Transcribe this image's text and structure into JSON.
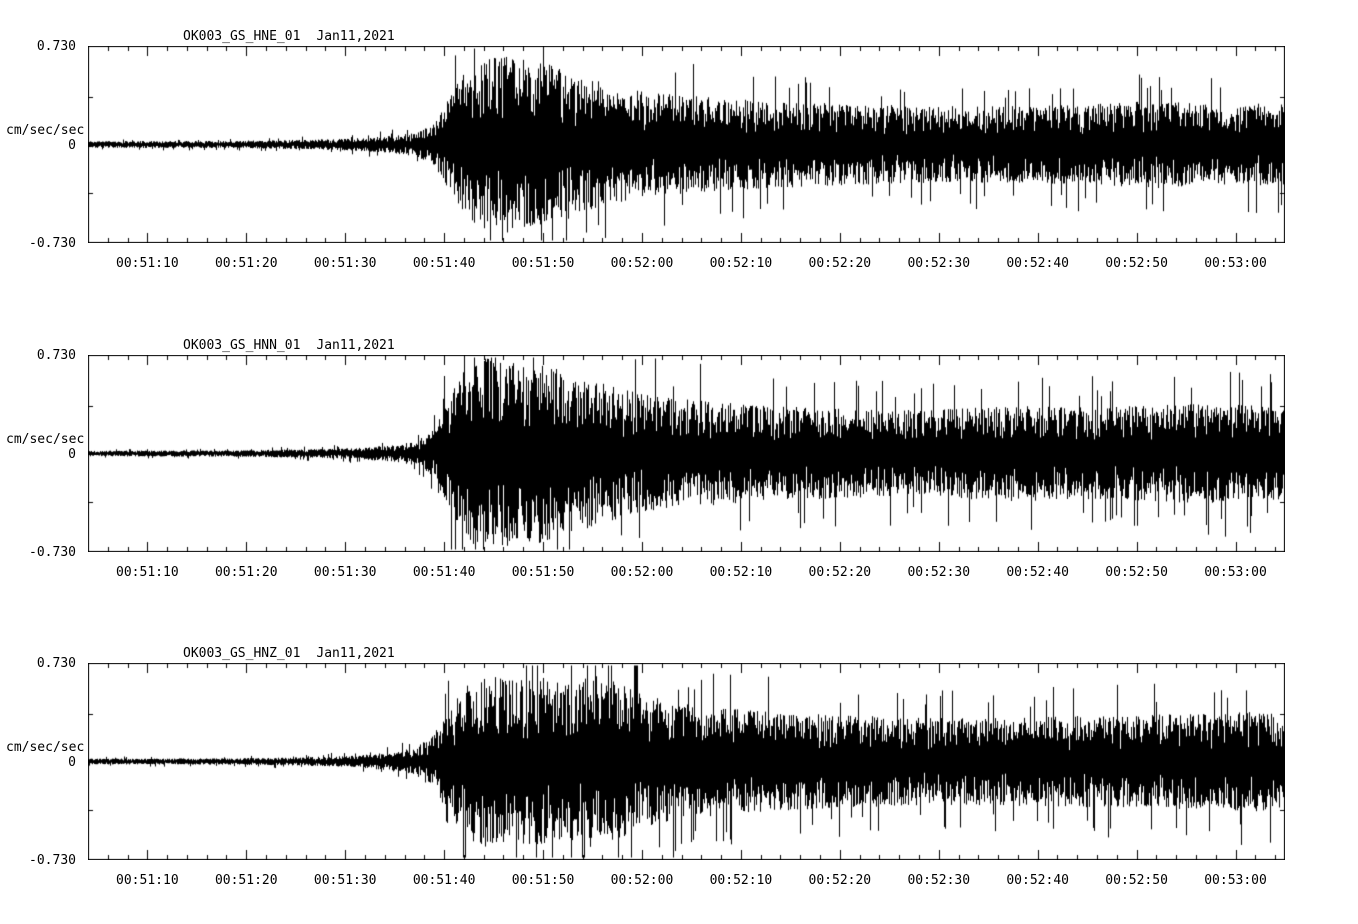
{
  "page": {
    "background": "#ffffff",
    "trace_color": "#000000",
    "frame_color": "#000000"
  },
  "chart_data": [
    {
      "type": "line",
      "title": "OK003_GS_HNE_01",
      "date_label": "Jan11,2021",
      "ylabel": "cm/sec/sec",
      "ylim": [
        -0.73,
        0.73
      ],
      "ytick_labels": [
        "0.730",
        "0",
        "-0.730"
      ],
      "xtick_labels": [
        "00:51:10",
        "00:51:20",
        "00:51:30",
        "00:51:40",
        "00:51:50",
        "00:52:00",
        "00:52:10",
        "00:52:20",
        "00:52:30",
        "00:52:40",
        "00:52:50",
        "00:53:00"
      ],
      "xtick_seconds": [
        6,
        16,
        26,
        36,
        46,
        56,
        66,
        76,
        86,
        96,
        106,
        116
      ],
      "x_range_seconds": [
        0,
        121
      ],
      "x_start_time": "00:51:04",
      "x_end_time": "00:53:05",
      "minor_tick_step_seconds": 2,
      "grid": false,
      "seed": 11,
      "envelope": [
        [
          0,
          0.035
        ],
        [
          14,
          0.038
        ],
        [
          22,
          0.05
        ],
        [
          27,
          0.065
        ],
        [
          30,
          0.085
        ],
        [
          33,
          0.12
        ],
        [
          35,
          0.22
        ],
        [
          36.5,
          0.5
        ],
        [
          38,
          0.75
        ],
        [
          40,
          0.88
        ],
        [
          42,
          0.95
        ],
        [
          44,
          0.9
        ],
        [
          46,
          0.85
        ],
        [
          48,
          0.8
        ],
        [
          50,
          0.7
        ],
        [
          53,
          0.62
        ],
        [
          57,
          0.55
        ],
        [
          62,
          0.5
        ],
        [
          68,
          0.46
        ],
        [
          75,
          0.43
        ],
        [
          85,
          0.4
        ],
        [
          95,
          0.4
        ],
        [
          103,
          0.43
        ],
        [
          108,
          0.46
        ],
        [
          114,
          0.42
        ],
        [
          121,
          0.43
        ]
      ]
    },
    {
      "type": "line",
      "title": "OK003_GS_HNN_01",
      "date_label": "Jan11,2021",
      "ylabel": "cm/sec/sec",
      "ylim": [
        -0.73,
        0.73
      ],
      "ytick_labels": [
        "0.730",
        "0",
        "-0.730"
      ],
      "xtick_labels": [
        "00:51:10",
        "00:51:20",
        "00:51:30",
        "00:51:40",
        "00:51:50",
        "00:52:00",
        "00:52:10",
        "00:52:20",
        "00:52:30",
        "00:52:40",
        "00:52:50",
        "00:53:00"
      ],
      "xtick_seconds": [
        6,
        16,
        26,
        36,
        46,
        56,
        66,
        76,
        86,
        96,
        106,
        116
      ],
      "x_range_seconds": [
        0,
        121
      ],
      "x_start_time": "00:51:04",
      "x_end_time": "00:53:05",
      "minor_tick_step_seconds": 2,
      "grid": false,
      "seed": 22,
      "envelope": [
        [
          0,
          0.03
        ],
        [
          14,
          0.033
        ],
        [
          22,
          0.045
        ],
        [
          27,
          0.06
        ],
        [
          30,
          0.08
        ],
        [
          33,
          0.12
        ],
        [
          35,
          0.25
        ],
        [
          36.5,
          0.6
        ],
        [
          38,
          0.9
        ],
        [
          40,
          1.0
        ],
        [
          42,
          0.98
        ],
        [
          44,
          0.92
        ],
        [
          46,
          0.95
        ],
        [
          48,
          0.85
        ],
        [
          50,
          0.8
        ],
        [
          53,
          0.7
        ],
        [
          57,
          0.6
        ],
        [
          62,
          0.55
        ],
        [
          68,
          0.5
        ],
        [
          75,
          0.47
        ],
        [
          85,
          0.45
        ],
        [
          93,
          0.5
        ],
        [
          100,
          0.48
        ],
        [
          107,
          0.5
        ],
        [
          113,
          0.52
        ],
        [
          118,
          0.5
        ],
        [
          121,
          0.48
        ]
      ]
    },
    {
      "type": "line",
      "title": "OK003_GS_HNZ_01",
      "date_label": "Jan11,2021",
      "ylabel": "cm/sec/sec",
      "ylim": [
        -0.73,
        0.73
      ],
      "ytick_labels": [
        "0.730",
        "0",
        "-0.730"
      ],
      "xtick_labels": [
        "00:51:10",
        "00:51:20",
        "00:51:30",
        "00:51:40",
        "00:51:50",
        "00:52:00",
        "00:52:10",
        "00:52:20",
        "00:52:30",
        "00:52:40",
        "00:52:50",
        "00:53:00"
      ],
      "xtick_seconds": [
        6,
        16,
        26,
        36,
        46,
        56,
        66,
        76,
        86,
        96,
        106,
        116
      ],
      "x_range_seconds": [
        0,
        121
      ],
      "x_start_time": "00:51:04",
      "x_end_time": "00:53:05",
      "minor_tick_step_seconds": 2,
      "grid": false,
      "seed": 33,
      "envelope": [
        [
          0,
          0.03
        ],
        [
          14,
          0.033
        ],
        [
          22,
          0.045
        ],
        [
          27,
          0.06
        ],
        [
          30,
          0.09
        ],
        [
          33,
          0.14
        ],
        [
          35,
          0.3
        ],
        [
          36.5,
          0.55
        ],
        [
          38,
          0.8
        ],
        [
          40,
          0.9
        ],
        [
          43,
          0.85
        ],
        [
          46,
          0.88
        ],
        [
          49,
          0.82
        ],
        [
          51,
          0.9
        ],
        [
          53,
          0.85
        ],
        [
          56,
          0.7
        ],
        [
          60,
          0.6
        ],
        [
          65,
          0.55
        ],
        [
          72,
          0.5
        ],
        [
          80,
          0.47
        ],
        [
          88,
          0.45
        ],
        [
          96,
          0.47
        ],
        [
          104,
          0.48
        ],
        [
          112,
          0.5
        ],
        [
          118,
          0.52
        ],
        [
          121,
          0.5
        ]
      ]
    }
  ]
}
